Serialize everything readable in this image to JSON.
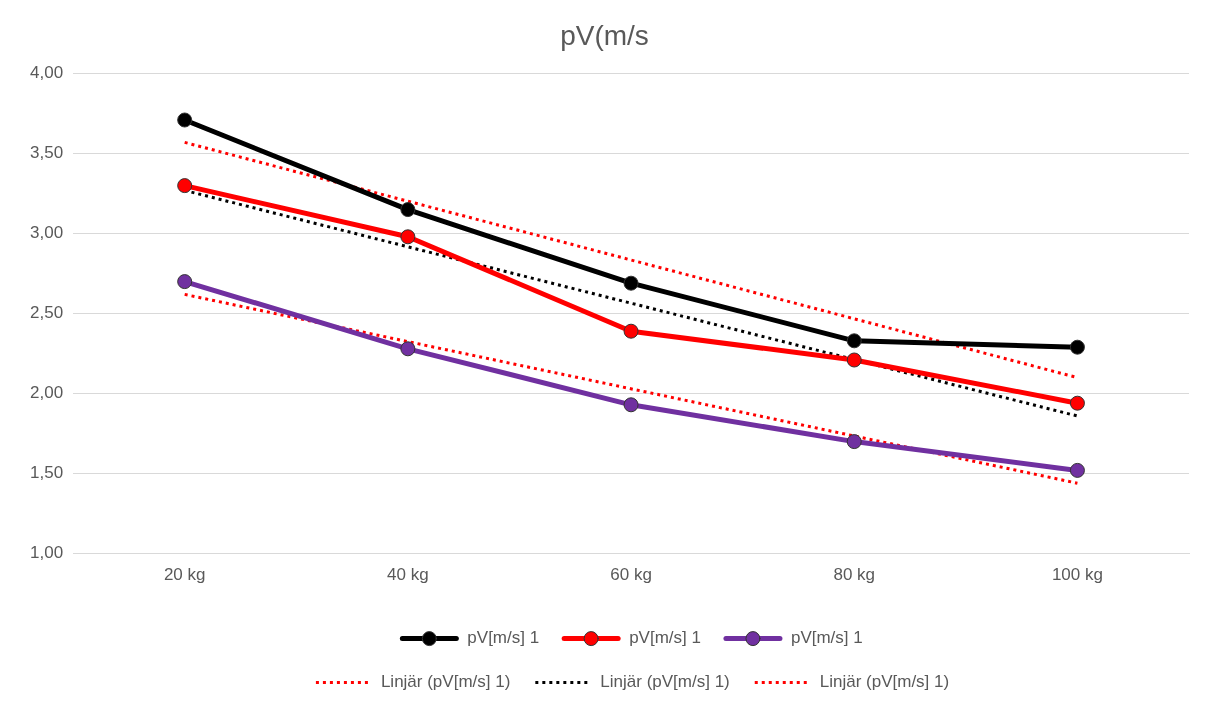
{
  "chart_data": {
    "type": "line",
    "title": "pV(m/s",
    "categories": [
      "20 kg",
      "40 kg",
      "60 kg",
      "80 kg",
      "100 kg"
    ],
    "ylim": [
      1,
      4
    ],
    "yticks": [
      {
        "value": 1,
        "label": "1,00"
      },
      {
        "value": 1.5,
        "label": "1,50"
      },
      {
        "value": 2,
        "label": "2,00"
      },
      {
        "value": 2.5,
        "label": "2,50"
      },
      {
        "value": 3,
        "label": "3,00"
      },
      {
        "value": 3.5,
        "label": "3,50"
      },
      {
        "value": 4,
        "label": "4,00"
      }
    ],
    "grid": "y",
    "legend": "bottom",
    "marker": "circle",
    "line_style": "solid",
    "series": [
      {
        "name": "pV[m/s] 1",
        "color": "#000000",
        "values": [
          3.71,
          3.15,
          2.69,
          2.33,
          2.29
        ]
      },
      {
        "name": "pV[m/s] 1",
        "color": "#ff0000",
        "values": [
          3.3,
          2.98,
          2.39,
          2.21,
          1.94
        ]
      },
      {
        "name": "pV[m/s] 1",
        "color": "#7030a0",
        "values": [
          2.7,
          2.28,
          1.93,
          1.7,
          1.52
        ]
      },
      {
        "name": "Linjär (pV[m/s] 1)",
        "type": "line",
        "line_style": "dotted",
        "marker": "none",
        "color": "#ff0000",
        "x": [
          "20 kg",
          "100 kg"
        ],
        "values": [
          3.57,
          2.1
        ]
      },
      {
        "name": "Linjär (pV[m/s] 1)",
        "type": "line",
        "line_style": "dotted",
        "marker": "none",
        "color": "#000000",
        "x": [
          "20 kg",
          "100 kg"
        ],
        "values": [
          3.27,
          1.86
        ]
      },
      {
        "name": "Linjär (pV[m/s] 1)",
        "type": "line",
        "line_style": "dotted",
        "marker": "none",
        "color": "#ff0000",
        "x": [
          "20 kg",
          "100 kg"
        ],
        "values": [
          2.62,
          1.44
        ]
      }
    ]
  }
}
